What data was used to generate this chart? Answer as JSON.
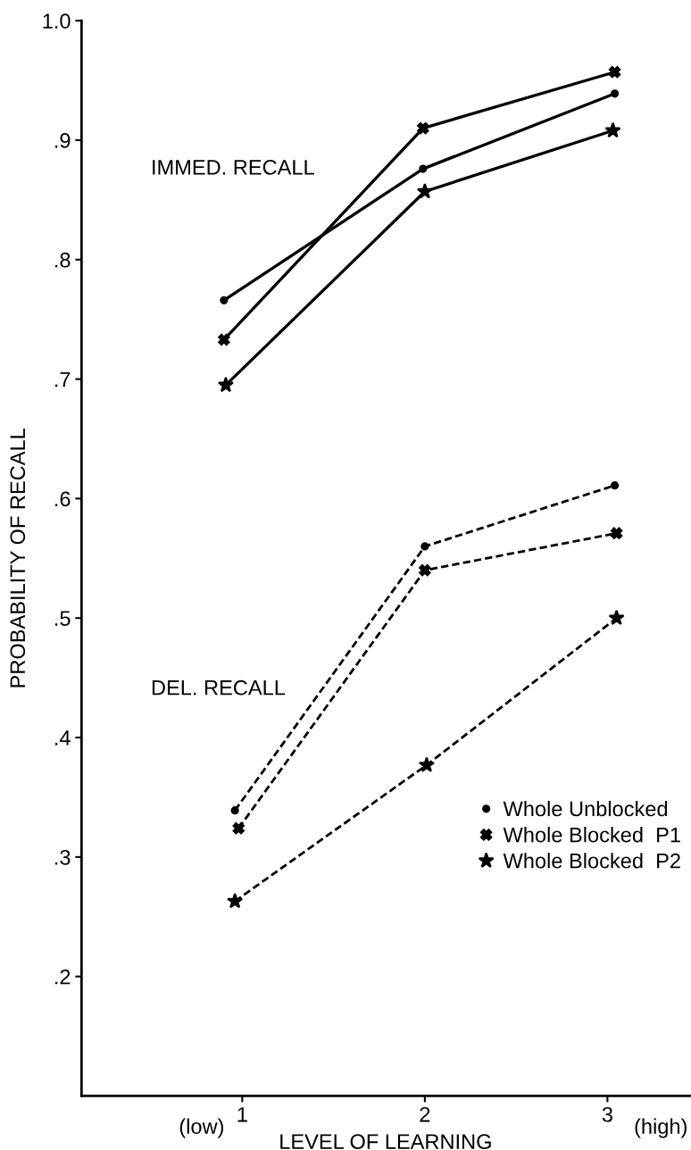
{
  "chart_data": {
    "type": "line",
    "xlabel": "LEVEL OF LEARNING",
    "ylabel": "PROBABILITY OF RECALL",
    "xlim": [
      0.12,
      3.45
    ],
    "xticks": [
      1,
      2,
      3
    ],
    "ylim": [
      0.1,
      1.0
    ],
    "yticks": [
      {
        "value": 0.2,
        "label": ".2"
      },
      {
        "value": 0.3,
        "label": ".3"
      },
      {
        "value": 0.4,
        "label": ".4"
      },
      {
        "value": 0.5,
        "label": ".5"
      },
      {
        "value": 0.6,
        "label": ".6"
      },
      {
        "value": 0.7,
        "label": ".7"
      },
      {
        "value": 0.8,
        "label": ".8"
      },
      {
        "value": 0.9,
        "label": ".9"
      },
      {
        "value": 1.0,
        "label": "1.0"
      }
    ],
    "grid": false,
    "legend": "bottom right",
    "series": [
      {
        "name": "Whole Unblocked",
        "color": "#000000",
        "marker": "circle",
        "line_style": "solid",
        "x": [
          0.9,
          1.99,
          3.04
        ],
        "values": [
          0.766,
          0.876,
          0.939
        ]
      },
      {
        "name": "Whole Blocked  P1",
        "color": "#000000",
        "marker": "cross",
        "line_style": "solid",
        "x": [
          0.9,
          1.99,
          3.04
        ],
        "values": [
          0.733,
          0.91,
          0.957
        ]
      },
      {
        "name": "Whole Blocked  P2",
        "color": "#000000",
        "marker": "star",
        "line_style": "solid",
        "x": [
          0.91,
          2.0,
          3.03
        ],
        "values": [
          0.695,
          0.857,
          0.908
        ]
      },
      {
        "color": "#000000",
        "marker": "circle",
        "line_style": "dashed",
        "x": [
          0.96,
          2.0,
          3.04
        ],
        "values": [
          0.339,
          0.56,
          0.611
        ]
      },
      {
        "color": "#000000",
        "marker": "cross",
        "line_style": "dashed",
        "x": [
          0.98,
          2.0,
          3.05
        ],
        "values": [
          0.324,
          0.54,
          0.571
        ]
      },
      {
        "color": "#000000",
        "marker": "star",
        "line_style": "dashed",
        "x": [
          0.96,
          2.01,
          3.05
        ],
        "values": [
          0.263,
          0.377,
          0.5
        ]
      }
    ],
    "annotations": [
      "IMMED. RECALL",
      "DEL. RECALL",
      "(low)",
      "(high)"
    ]
  }
}
